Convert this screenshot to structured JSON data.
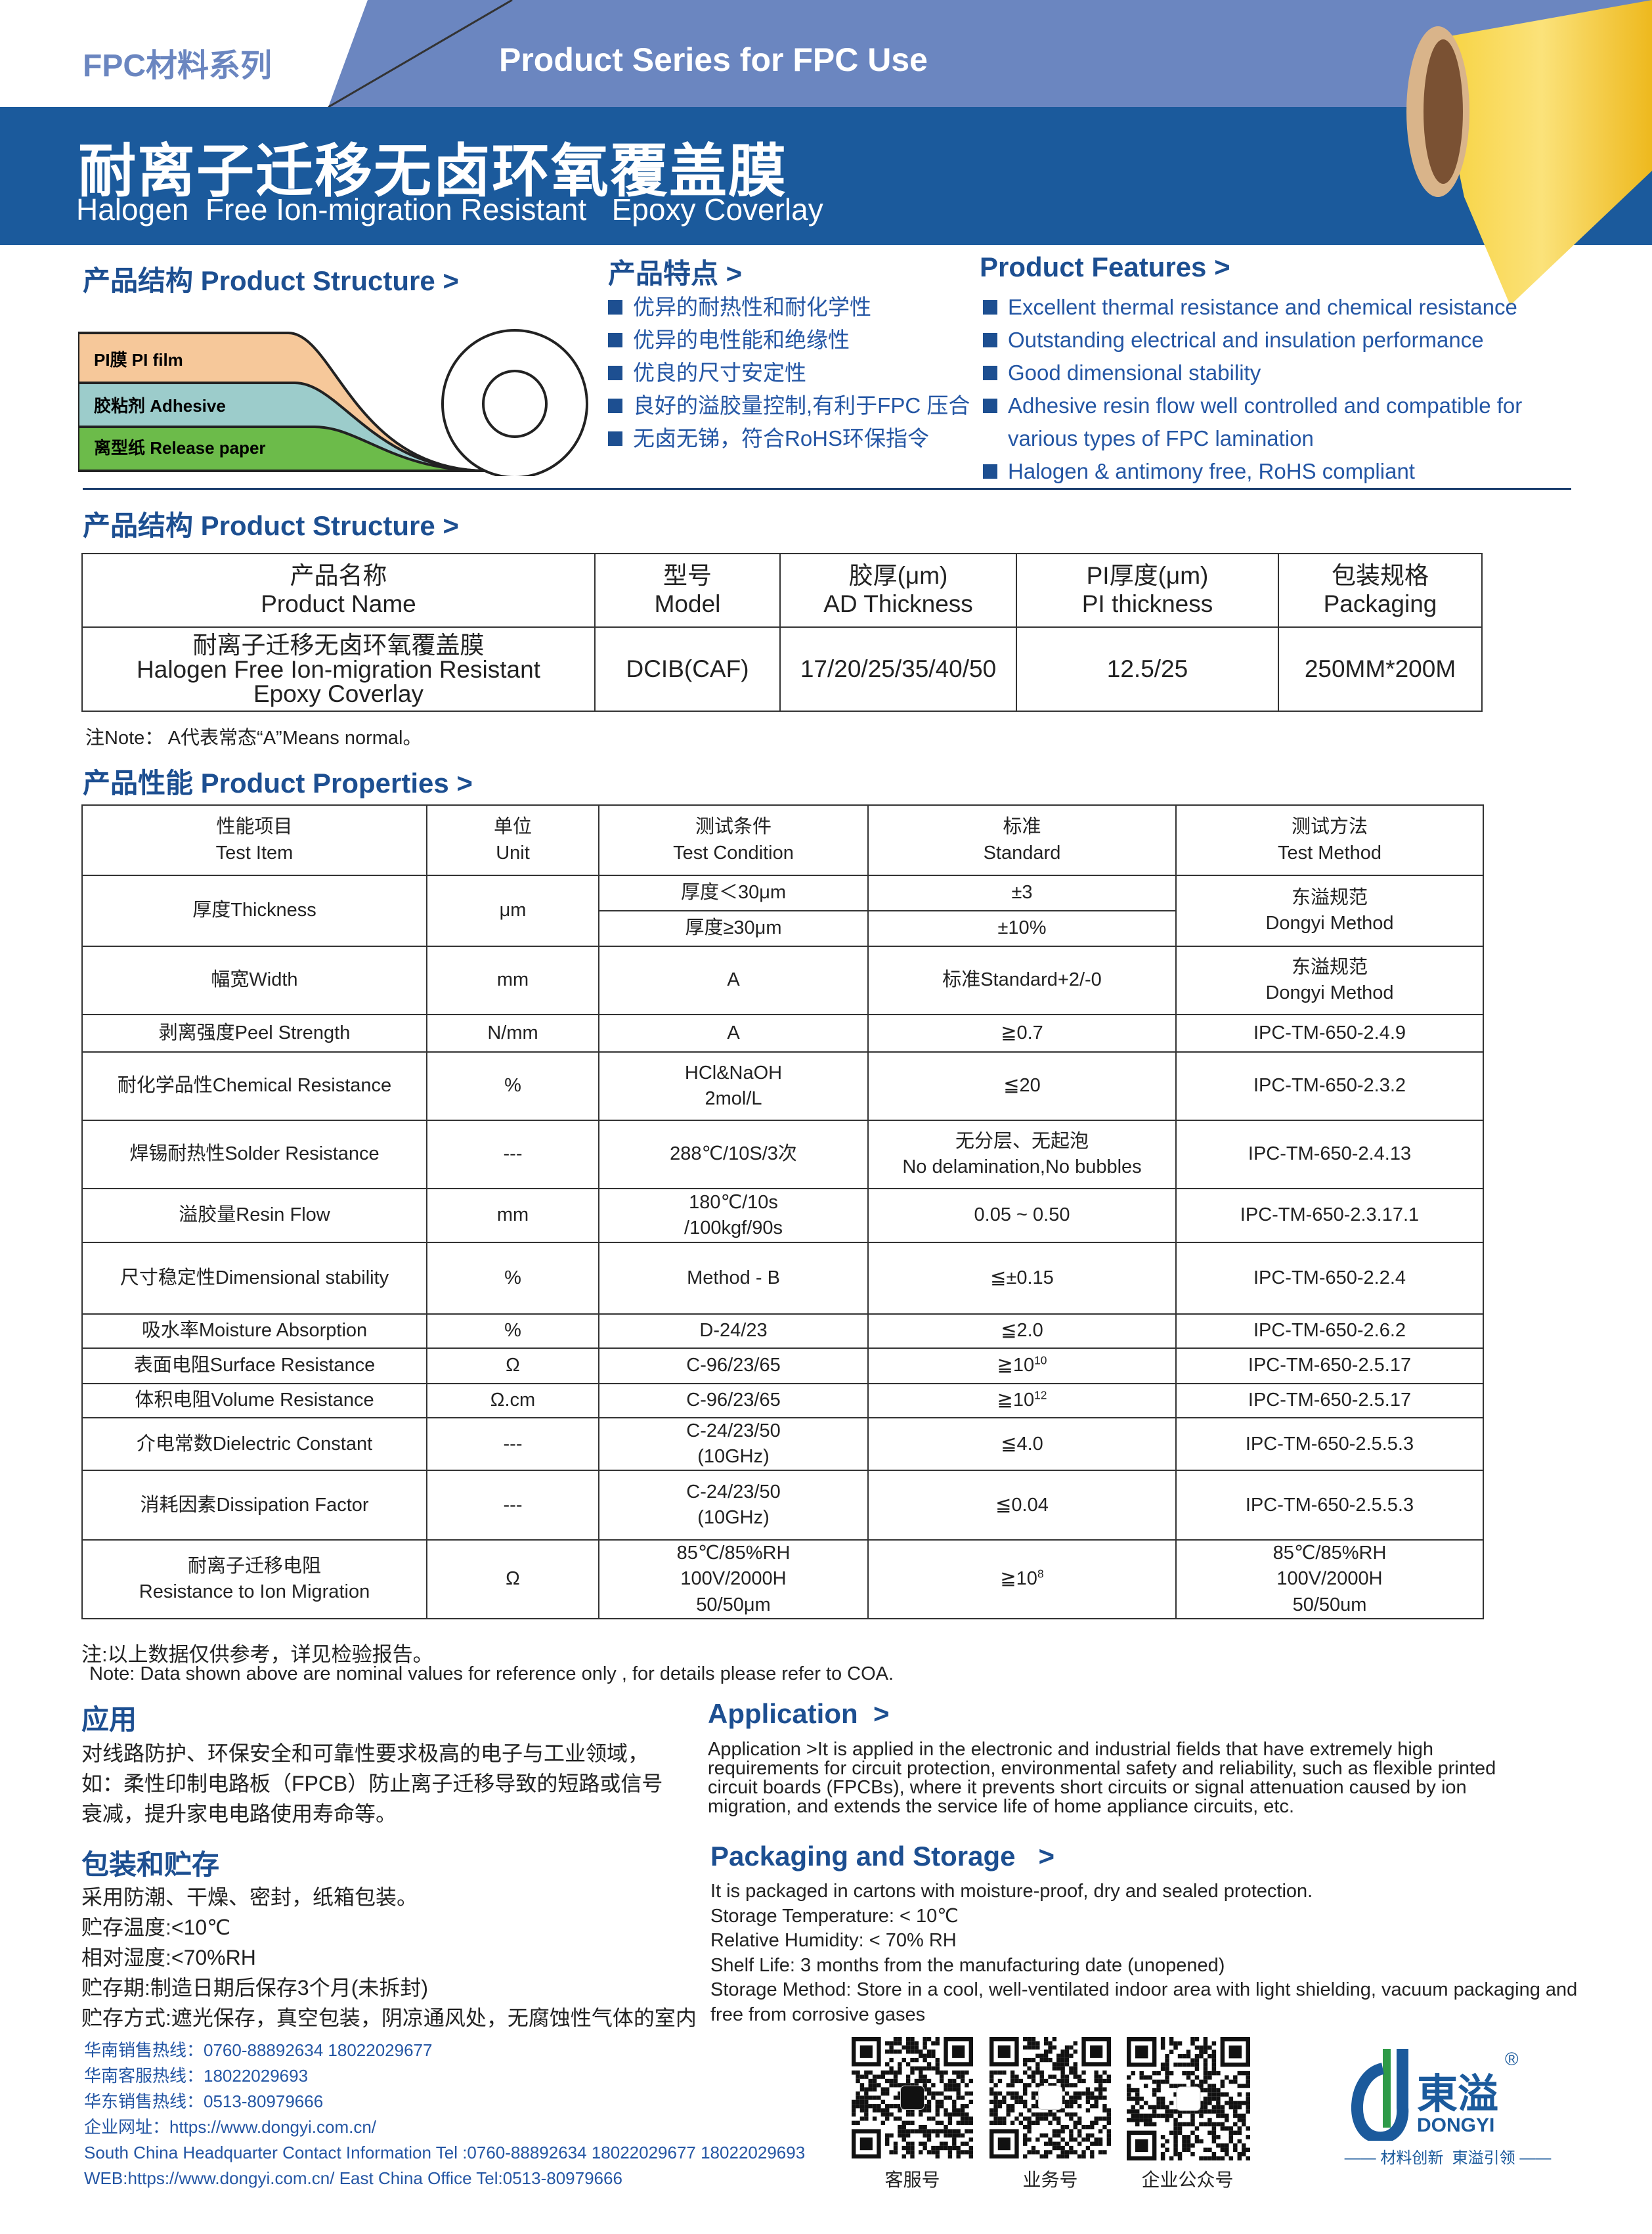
{
  "header": {
    "series_cn": "FPC材料系列",
    "series_en": "Product Series for FPC Use",
    "title_cn": "耐离子迁移无卤环氧覆盖膜",
    "title_en": "Halogen  Free Ion-migration Resistant   Epoxy Coverlay",
    "colors": {
      "dark_band": "#1b5a9c",
      "light_band": "#6b86c0",
      "roll": "#f2c42c"
    }
  },
  "structure": {
    "heading": "产品结构 Product Structure >",
    "layers": [
      "PI膜 PI film",
      "胶粘剂 Adhesive",
      "离型纸 Release paper"
    ],
    "layer_colors": [
      "#f6c89a",
      "#9ccccb",
      "#6cbb4a"
    ]
  },
  "features_cn": {
    "heading": "产品特点 >",
    "items": [
      "优异的耐热性和耐化学性",
      "优异的电性能和绝缘性",
      "优良的尺寸安定性",
      "良好的溢胶量控制,有利于FPC 压合",
      "无卤无锑，符合RoHS环保指令"
    ]
  },
  "features_en": {
    "heading": "Product Features >",
    "items": [
      "Excellent thermal resistance and chemical resistance",
      "Outstanding electrical and insulation performance",
      "Good dimensional stability",
      "Adhesive resin flow well controlled and compatible for",
      "various types of FPC lamination",
      "Halogen & antimony free, RoHS compliant"
    ]
  },
  "product_table": {
    "heading": "产品结构 Product Structure >",
    "headers": [
      [
        "产品名称",
        "Product Name"
      ],
      [
        "型号",
        "Model"
      ],
      [
        "胶厚(μm)",
        "AD Thickness"
      ],
      [
        "PI厚度(μm)",
        "PI thickness"
      ],
      [
        "包装规格",
        "Packaging"
      ]
    ],
    "row": {
      "name": [
        "耐离子迁移无卤环氧覆盖膜",
        "Halogen Free Ion-migration Resistant",
        "Epoxy Coverlay"
      ],
      "model": "DCIB(CAF)",
      "ad": "17/20/25/35/40/50",
      "pi": "12.5/25",
      "packaging": "250MM*200M"
    },
    "note": "注Note： A代表常态“A”Means normal。"
  },
  "properties": {
    "heading": "产品性能 Product Properties >",
    "headers": [
      [
        "性能项目",
        "Test Item"
      ],
      [
        "单位",
        "Unit"
      ],
      [
        "测试条件",
        "Test Condition"
      ],
      [
        "标准",
        "Standard"
      ],
      [
        "测试方法",
        "Test Method"
      ]
    ],
    "thickness": {
      "item": "厚度Thickness",
      "unit": "μm",
      "cond1": "厚度＜30μm",
      "std1": "±3",
      "cond2": "厚度≥30μm",
      "std2": "±10%",
      "method": [
        "东溢规范",
        "Dongyi Method"
      ]
    },
    "rows": [
      {
        "item": [
          "幅宽Width"
        ],
        "unit": "mm",
        "cond": [
          "A"
        ],
        "std": [
          "标准Standard+2/-0"
        ],
        "method": [
          "东溢规范",
          "Dongyi Method"
        ]
      },
      {
        "item": [
          "剥离强度Peel Strength"
        ],
        "unit": "N/mm",
        "cond": [
          "A"
        ],
        "std": [
          "≧0.7"
        ],
        "method": [
          "IPC-TM-650-2.4.9"
        ]
      },
      {
        "item": [
          "耐化学品性Chemical Resistance"
        ],
        "unit": "%",
        "cond": [
          "HCl&NaOH",
          "2mol/L"
        ],
        "std": [
          "≦20"
        ],
        "method": [
          "IPC-TM-650-2.3.2"
        ]
      },
      {
        "item": [
          "焊锡耐热性Solder Resistance"
        ],
        "unit": "---",
        "cond": [
          "288℃/10S/3次"
        ],
        "std": [
          "无分层、无起泡",
          "No delamination,No bubbles"
        ],
        "method": [
          "IPC-TM-650-2.4.13"
        ]
      },
      {
        "item": [
          "溢胶量Resin Flow"
        ],
        "unit": "mm",
        "cond": [
          "180℃/10s",
          "/100kgf/90s"
        ],
        "std": [
          "0.05 ~ 0.50"
        ],
        "method": [
          "IPC-TM-650-2.3.17.1"
        ]
      },
      {
        "item": [
          "尺寸稳定性Dimensional stability"
        ],
        "unit": "%",
        "cond": [
          "Method - B"
        ],
        "std": [
          "≦±0.15"
        ],
        "method": [
          "IPC-TM-650-2.2.4"
        ]
      },
      {
        "item": [
          "吸水率Moisture Absorption"
        ],
        "unit": "%",
        "cond": [
          "D-24/23"
        ],
        "std": [
          "≦2.0"
        ],
        "method": [
          "IPC-TM-650-2.6.2"
        ]
      },
      {
        "item": [
          "表面电阻Surface Resistance"
        ],
        "unit": "Ω",
        "cond": [
          "C-96/23/65"
        ],
        "std": [
          "≧10"
        ],
        "sup": "10",
        "method": [
          "IPC-TM-650-2.5.17"
        ]
      },
      {
        "item": [
          "体积电阻Volume Resistance"
        ],
        "unit": "Ω.cm",
        "cond": [
          "C-96/23/65"
        ],
        "std": [
          "≧10"
        ],
        "sup": "12",
        "method": [
          "IPC-TM-650-2.5.17"
        ]
      },
      {
        "item": [
          "介电常数Dielectric Constant"
        ],
        "unit": "---",
        "cond": [
          "C-24/23/50",
          "(10GHz)"
        ],
        "std": [
          "≦4.0"
        ],
        "method": [
          "IPC-TM-650-2.5.5.3"
        ]
      },
      {
        "item": [
          "消耗因素Dissipation Factor"
        ],
        "unit": "---",
        "cond": [
          "C-24/23/50",
          "(10GHz)"
        ],
        "std": [
          "≦0.04"
        ],
        "method": [
          "IPC-TM-650-2.5.5.3"
        ]
      },
      {
        "item": [
          "耐离子迁移电阻",
          "Resistance to Ion Migration"
        ],
        "unit": "Ω",
        "cond": [
          "85℃/85%RH",
          "100V/2000H",
          "50/50μm"
        ],
        "std": [
          "≧10"
        ],
        "sup": "8",
        "method": [
          "85℃/85%RH",
          "100V/2000H",
          "50/50um"
        ]
      }
    ],
    "note_cn": "注:以上数据仅供参考，详见检验报告。",
    "note_en": "Note: Data shown above are nominal values for reference only , for details please refer to COA."
  },
  "application": {
    "heading_cn": "应用",
    "text_cn": [
      "对线路防护、环保安全和可靠性要求极高的电子与工业领域，",
      "如：柔性印制电路板（FPCB）防止离子迁移导致的短路或信号",
      "衰减，提升家电电路使用寿命等。"
    ],
    "heading_en": "Application  >",
    "text_en": [
      "Application >It is applied in the electronic and industrial fields that have extremely high",
      "requirements for circuit protection, environmental safety and reliability, such as flexible printed",
      "circuit boards (FPCBs), where it prevents short circuits or signal attenuation caused by ion",
      "migration, and extends the service life of home appliance circuits, etc."
    ]
  },
  "packaging": {
    "heading_cn": "包装和贮存",
    "text_cn": [
      "采用防潮、干燥、密封，纸箱包装。",
      "贮存温度:<10℃",
      "相对湿度:<70%RH",
      "贮存期:制造日期后保存3个月(未拆封)",
      "贮存方式:遮光保存，真空包装，阴凉通风处，无腐蚀性气体的室内"
    ],
    "heading_en": "Packaging and Storage   >",
    "text_en": [
      "It is packaged in cartons with moisture-proof, dry and sealed protection.",
      "Storage Temperature: < 10℃",
      "Relative Humidity: < 70% RH",
      "Shelf Life: 3 months from the manufacturing date (unopened)",
      "Storage Method: Store in a cool, well-ventilated indoor area with light shielding, vacuum packaging and",
      "free from corrosive gases"
    ]
  },
  "contacts": [
    "华南销售热线：0760-88892634 18022029677",
    "华南客服热线：18022029693",
    "华东销售热线：0513-80979666",
    "企业网址：https://www.dongyi.com.cn/",
    "South China Headquarter Contact Information Tel :0760-88892634 18022029677 18022029693",
    "WEB:https://www.dongyi.com.cn/  East China Office Tel:0513-80979666"
  ],
  "qr_codes": [
    {
      "label": "客服号"
    },
    {
      "label": "业务号"
    },
    {
      "label": "企业公众号"
    }
  ],
  "logo": {
    "name_cn": "東溢",
    "name_en": "DONGYI",
    "slogan": "材料创新  東溢引领",
    "registered": "®",
    "colors": {
      "blue": "#1b5a9c",
      "green": "#2e9a48"
    }
  }
}
